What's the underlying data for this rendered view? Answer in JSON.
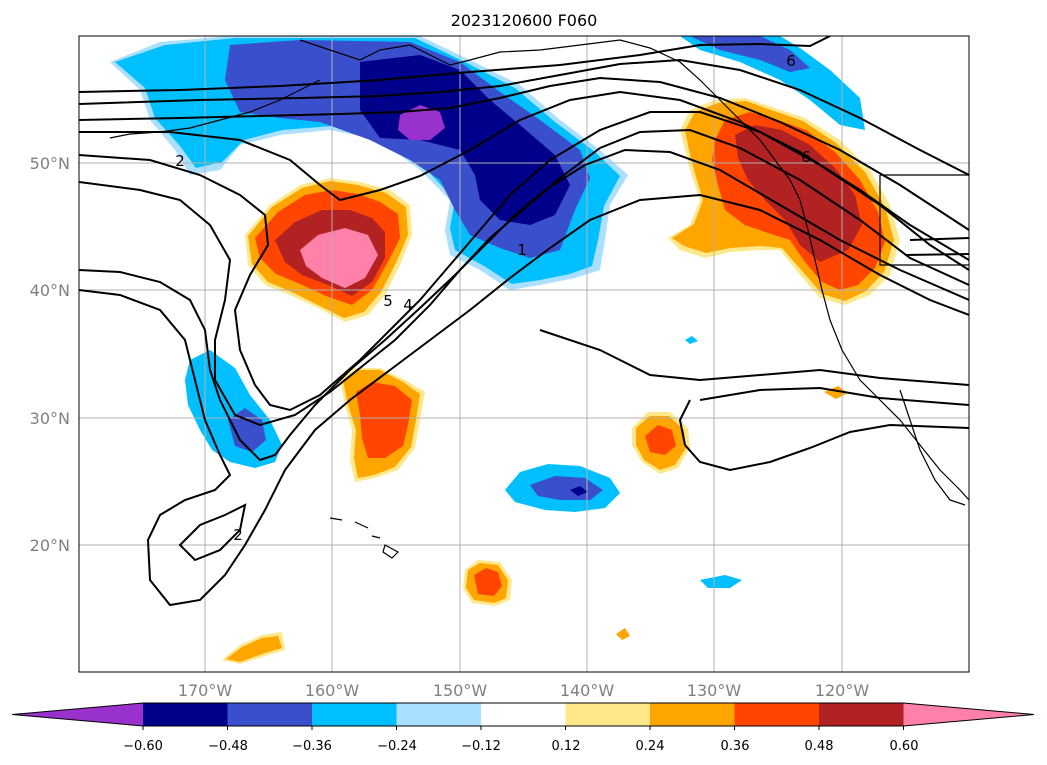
{
  "title": "2023120600 F060",
  "map": {
    "lon_labels": [
      "170°W",
      "160°W",
      "150°W",
      "140°W",
      "130°W",
      "120°W"
    ],
    "lat_labels": [
      "50°N",
      "40°N",
      "30°N",
      "20°N"
    ],
    "contour_labels": [
      "2",
      "5",
      "4",
      "1",
      "6",
      "6",
      "2"
    ]
  },
  "colorbar": {
    "ticks": [
      "−0.60",
      "−0.48",
      "−0.36",
      "−0.24",
      "−0.12",
      "0.12",
      "0.24",
      "0.36",
      "0.48",
      "0.60"
    ],
    "colors": [
      "#9932cc",
      "#00008b",
      "#3a4fcc",
      "#00bfff",
      "#aadfff",
      "#ffffff",
      "#ffe88a",
      "#ffa500",
      "#ff4500",
      "#b22222",
      "#ff80a8"
    ]
  }
}
